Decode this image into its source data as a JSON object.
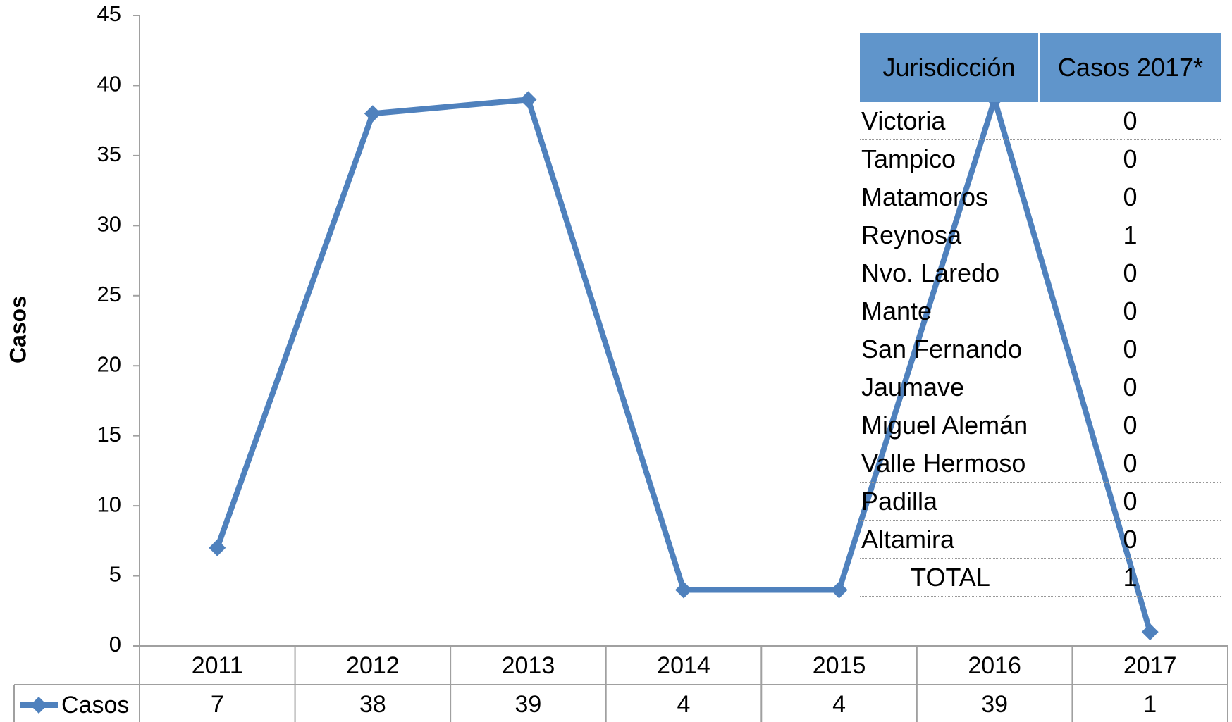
{
  "chart_data": {
    "type": "line",
    "categories": [
      "2011",
      "2012",
      "2013",
      "2014",
      "2015",
      "2016",
      "2017"
    ],
    "series": [
      {
        "name": "Casos",
        "color": "#4f81bd",
        "values": [
          7,
          38,
          39,
          4,
          4,
          39,
          1
        ]
      }
    ],
    "ylabel": "Casos",
    "ylim": [
      0,
      45
    ],
    "yticks": [
      0,
      5,
      10,
      15,
      20,
      25,
      30,
      35,
      40,
      45
    ],
    "data_table": true
  },
  "table": {
    "header": [
      "Jurisdicción",
      "Casos 2017*"
    ],
    "rows": [
      [
        "Victoria",
        "0"
      ],
      [
        "Tampico",
        "0"
      ],
      [
        "Matamoros",
        "0"
      ],
      [
        "Reynosa",
        "1"
      ],
      [
        "Nvo. Laredo",
        "0"
      ],
      [
        "Mante",
        "0"
      ],
      [
        "San Fernando",
        "0"
      ],
      [
        "Jaumave",
        "0"
      ],
      [
        "Miguel Alemán",
        "0"
      ],
      [
        "Valle Hermoso",
        "0"
      ],
      [
        "Padilla",
        "0"
      ],
      [
        "Altamira",
        "0"
      ],
      [
        "TOTAL",
        "1"
      ]
    ]
  }
}
